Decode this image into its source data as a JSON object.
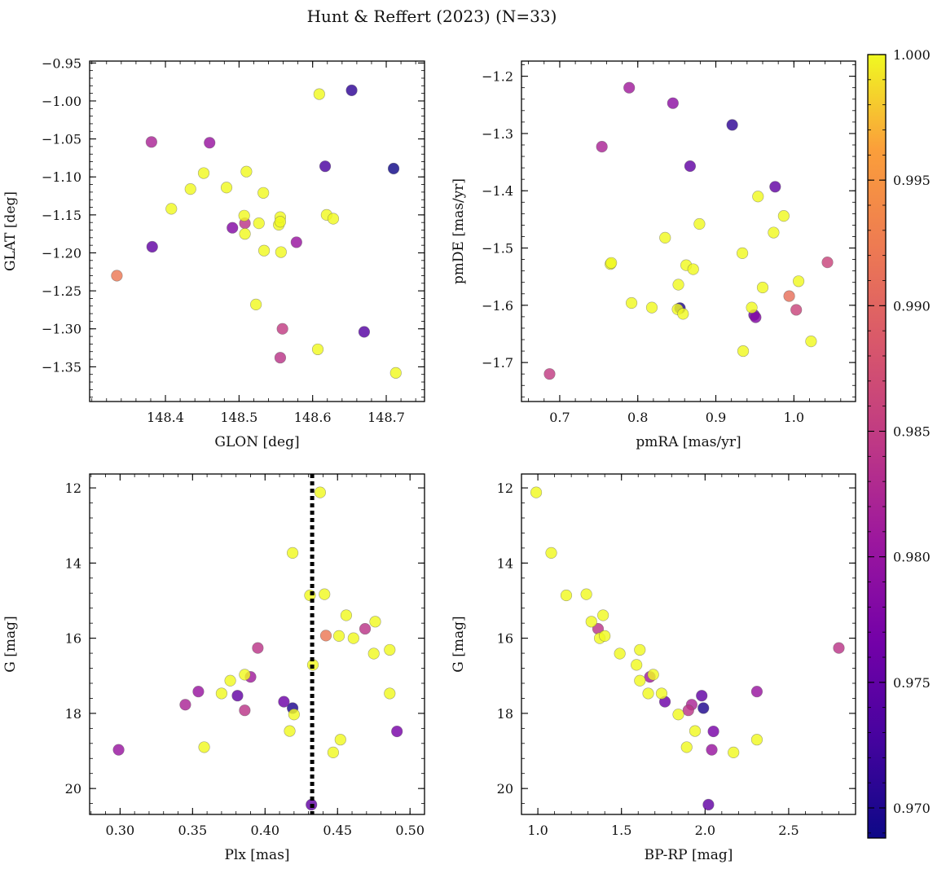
{
  "title": "Hunt & Reffert (2023) (N=33)",
  "colorbar": {
    "colormap": "plasma",
    "min": 0.9688,
    "max": 1.0,
    "ticks": [
      0.97,
      0.975,
      0.98,
      0.985,
      0.99,
      0.995,
      1.0
    ],
    "tick_labels": [
      "0.970",
      "0.975",
      "0.980",
      "0.985",
      "0.990",
      "0.995",
      "1.000"
    ]
  },
  "chart_data": [
    {
      "type": "scatter",
      "id": "glon-glat",
      "xlabel": "GLON [deg]",
      "ylabel": "GLAT [deg]",
      "xlim": [
        148.297,
        148.752
      ],
      "ylim": [
        -1.3957,
        -0.9475
      ],
      "y_inverted": false,
      "xticks": [
        148.4,
        148.5,
        148.6,
        148.7
      ],
      "xtick_labels": [
        "148.4",
        "148.5",
        "148.6",
        "148.7"
      ],
      "yticks": [
        -0.95,
        -1.0,
        -1.05,
        -1.1,
        -1.15,
        -1.2,
        -1.25,
        -1.3,
        -1.35
      ],
      "ytick_labels": [
        "−0.95",
        "−1.00",
        "−1.05",
        "−1.10",
        "−1.15",
        "−1.20",
        "−1.25",
        "−1.30",
        "−1.35"
      ],
      "points": [
        {
          "x": 148.334,
          "y": -1.23,
          "c": 0.992
        },
        {
          "x": 148.381,
          "y": -1.054,
          "c": 0.982
        },
        {
          "x": 148.382,
          "y": -1.192,
          "c": 0.975
        },
        {
          "x": 148.408,
          "y": -1.142,
          "c": 1.0
        },
        {
          "x": 148.434,
          "y": -1.116,
          "c": 1.0
        },
        {
          "x": 148.452,
          "y": -1.095,
          "c": 1.0
        },
        {
          "x": 148.46,
          "y": -1.055,
          "c": 0.98
        },
        {
          "x": 148.483,
          "y": -1.114,
          "c": 1.0
        },
        {
          "x": 148.491,
          "y": -1.167,
          "c": 0.978
        },
        {
          "x": 148.507,
          "y": -1.151,
          "c": 1.0
        },
        {
          "x": 148.508,
          "y": -1.161,
          "c": 0.984
        },
        {
          "x": 148.508,
          "y": -1.175,
          "c": 1.0
        },
        {
          "x": 148.51,
          "y": -1.093,
          "c": 1.0
        },
        {
          "x": 148.523,
          "y": -1.268,
          "c": 1.0
        },
        {
          "x": 148.527,
          "y": -1.161,
          "c": 1.0
        },
        {
          "x": 148.533,
          "y": -1.121,
          "c": 1.0
        },
        {
          "x": 148.534,
          "y": -1.197,
          "c": 1.0
        },
        {
          "x": 148.554,
          "y": -1.163,
          "c": 1.0
        },
        {
          "x": 148.556,
          "y": -1.153,
          "c": 1.0
        },
        {
          "x": 148.556,
          "y": -1.159,
          "c": 1.0
        },
        {
          "x": 148.557,
          "y": -1.199,
          "c": 1.0
        },
        {
          "x": 148.556,
          "y": -1.338,
          "c": 0.984
        },
        {
          "x": 148.559,
          "y": -1.3,
          "c": 0.985
        },
        {
          "x": 148.578,
          "y": -1.186,
          "c": 0.98
        },
        {
          "x": 148.609,
          "y": -0.991,
          "c": 1.0
        },
        {
          "x": 148.607,
          "y": -1.327,
          "c": 1.0
        },
        {
          "x": 148.617,
          "y": -1.086,
          "c": 0.973
        },
        {
          "x": 148.619,
          "y": -1.15,
          "c": 1.0
        },
        {
          "x": 148.628,
          "y": -1.155,
          "c": 1.0
        },
        {
          "x": 148.653,
          "y": -0.986,
          "c": 0.971
        },
        {
          "x": 148.67,
          "y": -1.304,
          "c": 0.974
        },
        {
          "x": 148.71,
          "y": -1.089,
          "c": 0.969
        },
        {
          "x": 148.713,
          "y": -1.358,
          "c": 1.0
        }
      ]
    },
    {
      "type": "scatter",
      "id": "pmra-pmde",
      "xlabel": "pmRA [mas/yr]",
      "ylabel": "pmDE [mas/yr]",
      "xlim": [
        0.651,
        1.079
      ],
      "ylim": [
        -1.7681,
        -1.1735
      ],
      "y_inverted": false,
      "xticks": [
        0.7,
        0.8,
        0.9,
        1.0
      ],
      "xtick_labels": [
        "0.7",
        "0.8",
        "0.9",
        "1.0"
      ],
      "yticks": [
        -1.2,
        -1.3,
        -1.4,
        -1.5,
        -1.6,
        -1.7
      ],
      "ytick_labels": [
        "−1.2",
        "−1.3",
        "−1.4",
        "−1.5",
        "−1.6",
        "−1.7"
      ],
      "points": [
        {
          "x": 0.687,
          "y": -1.72,
          "c": 0.985
        },
        {
          "x": 0.754,
          "y": -1.323,
          "c": 0.982
        },
        {
          "x": 0.765,
          "y": -1.528,
          "c": 1.0
        },
        {
          "x": 0.766,
          "y": -1.526,
          "c": 1.0
        },
        {
          "x": 0.789,
          "y": -1.22,
          "c": 0.981
        },
        {
          "x": 0.792,
          "y": -1.596,
          "c": 1.0
        },
        {
          "x": 0.818,
          "y": -1.604,
          "c": 1.0
        },
        {
          "x": 0.835,
          "y": -1.482,
          "c": 1.0
        },
        {
          "x": 0.845,
          "y": -1.247,
          "c": 0.979
        },
        {
          "x": 0.852,
          "y": -1.564,
          "c": 1.0
        },
        {
          "x": 0.854,
          "y": -1.605,
          "c": 0.97
        },
        {
          "x": 0.851,
          "y": -1.607,
          "c": 1.0
        },
        {
          "x": 0.858,
          "y": -1.615,
          "c": 1.0
        },
        {
          "x": 0.862,
          "y": -1.53,
          "c": 1.0
        },
        {
          "x": 0.867,
          "y": -1.357,
          "c": 0.975
        },
        {
          "x": 0.871,
          "y": -1.537,
          "c": 1.0
        },
        {
          "x": 0.879,
          "y": -1.458,
          "c": 1.0
        },
        {
          "x": 0.921,
          "y": -1.285,
          "c": 0.971
        },
        {
          "x": 0.934,
          "y": -1.509,
          "c": 1.0
        },
        {
          "x": 0.935,
          "y": -1.68,
          "c": 1.0
        },
        {
          "x": 0.946,
          "y": -1.604,
          "c": 1.0
        },
        {
          "x": 0.949,
          "y": -1.617,
          "c": 0.976
        },
        {
          "x": 0.951,
          "y": -1.621,
          "c": 0.978
        },
        {
          "x": 0.954,
          "y": -1.41,
          "c": 1.0
        },
        {
          "x": 0.96,
          "y": -1.569,
          "c": 1.0
        },
        {
          "x": 0.974,
          "y": -1.473,
          "c": 1.0
        },
        {
          "x": 0.976,
          "y": -1.393,
          "c": 0.975
        },
        {
          "x": 0.987,
          "y": -1.444,
          "c": 1.0
        },
        {
          "x": 0.994,
          "y": -1.584,
          "c": 0.991
        },
        {
          "x": 1.003,
          "y": -1.608,
          "c": 0.986
        },
        {
          "x": 1.006,
          "y": -1.558,
          "c": 1.0
        },
        {
          "x": 1.022,
          "y": -1.663,
          "c": 1.0
        },
        {
          "x": 1.043,
          "y": -1.525,
          "c": 0.986
        }
      ]
    },
    {
      "type": "scatter",
      "id": "plx-g",
      "xlabel": "Plx [mas]",
      "ylabel": "G [mag]",
      "xlim": [
        0.279,
        0.51
      ],
      "ylim": [
        20.69,
        11.63
      ],
      "y_inverted": true,
      "xticks": [
        0.3,
        0.35,
        0.4,
        0.45,
        0.5
      ],
      "xtick_labels": [
        "0.30",
        "0.35",
        "0.40",
        "0.45",
        "0.50"
      ],
      "yticks": [
        12,
        14,
        16,
        18,
        20
      ],
      "ytick_labels": [
        "12",
        "14",
        "16",
        "18",
        "20"
      ],
      "vline": {
        "x": 0.4325,
        "style": "dotted"
      },
      "points": [
        {
          "x": 0.299,
          "y": 18.97,
          "c": 0.98
        },
        {
          "x": 0.345,
          "y": 17.77,
          "c": 0.982
        },
        {
          "x": 0.354,
          "y": 17.42,
          "c": 0.98
        },
        {
          "x": 0.358,
          "y": 18.9,
          "c": 1.0
        },
        {
          "x": 0.37,
          "y": 17.47,
          "c": 1.0
        },
        {
          "x": 0.376,
          "y": 17.13,
          "c": 1.0
        },
        {
          "x": 0.381,
          "y": 17.53,
          "c": 0.975
        },
        {
          "x": 0.386,
          "y": 17.92,
          "c": 0.984
        },
        {
          "x": 0.386,
          "y": 16.97,
          "c": 1.0
        },
        {
          "x": 0.39,
          "y": 17.03,
          "c": 0.981
        },
        {
          "x": 0.395,
          "y": 16.26,
          "c": 0.984
        },
        {
          "x": 0.413,
          "y": 17.69,
          "c": 0.976
        },
        {
          "x": 0.417,
          "y": 18.47,
          "c": 1.0
        },
        {
          "x": 0.419,
          "y": 13.73,
          "c": 1.0
        },
        {
          "x": 0.419,
          "y": 17.86,
          "c": 0.97
        },
        {
          "x": 0.42,
          "y": 18.03,
          "c": 1.0
        },
        {
          "x": 0.431,
          "y": 14.86,
          "c": 1.0
        },
        {
          "x": 0.433,
          "y": 16.71,
          "c": 1.0
        },
        {
          "x": 0.432,
          "y": 20.43,
          "c": 0.975
        },
        {
          "x": 0.438,
          "y": 12.12,
          "c": 1.0
        },
        {
          "x": 0.441,
          "y": 14.83,
          "c": 1.0
        },
        {
          "x": 0.442,
          "y": 15.93,
          "c": 0.992
        },
        {
          "x": 0.447,
          "y": 19.04,
          "c": 1.0
        },
        {
          "x": 0.451,
          "y": 15.94,
          "c": 1.0
        },
        {
          "x": 0.452,
          "y": 18.7,
          "c": 1.0
        },
        {
          "x": 0.456,
          "y": 15.39,
          "c": 1.0
        },
        {
          "x": 0.461,
          "y": 16.0,
          "c": 1.0
        },
        {
          "x": 0.469,
          "y": 15.75,
          "c": 0.984
        },
        {
          "x": 0.475,
          "y": 16.41,
          "c": 1.0
        },
        {
          "x": 0.476,
          "y": 15.56,
          "c": 1.0
        },
        {
          "x": 0.486,
          "y": 16.31,
          "c": 1.0
        },
        {
          "x": 0.486,
          "y": 17.47,
          "c": 1.0
        },
        {
          "x": 0.491,
          "y": 18.48,
          "c": 0.977
        }
      ]
    },
    {
      "type": "scatter",
      "id": "bprp-g",
      "xlabel": "BP-RP [mag]",
      "ylabel": "G [mag]",
      "xlim": [
        0.902,
        2.9
      ],
      "ylim": [
        20.69,
        11.63
      ],
      "y_inverted": true,
      "xticks": [
        1.0,
        1.5,
        2.0,
        2.5
      ],
      "xtick_labels": [
        "1.0",
        "1.5",
        "2.0",
        "2.5"
      ],
      "yticks": [
        12,
        14,
        16,
        18,
        20
      ],
      "ytick_labels": [
        "12",
        "14",
        "16",
        "18",
        "20"
      ],
      "points": [
        {
          "x": 0.99,
          "y": 12.12,
          "c": 1.0
        },
        {
          "x": 1.08,
          "y": 13.73,
          "c": 1.0
        },
        {
          "x": 1.17,
          "y": 14.86,
          "c": 1.0
        },
        {
          "x": 1.29,
          "y": 14.83,
          "c": 1.0
        },
        {
          "x": 1.32,
          "y": 15.56,
          "c": 1.0
        },
        {
          "x": 1.36,
          "y": 15.75,
          "c": 0.984
        },
        {
          "x": 1.37,
          "y": 16.0,
          "c": 1.0
        },
        {
          "x": 1.39,
          "y": 15.39,
          "c": 1.0
        },
        {
          "x": 1.4,
          "y": 15.94,
          "c": 1.0
        },
        {
          "x": 1.49,
          "y": 16.41,
          "c": 1.0
        },
        {
          "x": 1.59,
          "y": 16.71,
          "c": 1.0
        },
        {
          "x": 1.61,
          "y": 16.31,
          "c": 1.0
        },
        {
          "x": 1.61,
          "y": 17.13,
          "c": 1.0
        },
        {
          "x": 1.66,
          "y": 17.47,
          "c": 1.0
        },
        {
          "x": 1.67,
          "y": 17.03,
          "c": 0.981
        },
        {
          "x": 1.69,
          "y": 16.97,
          "c": 1.0
        },
        {
          "x": 1.74,
          "y": 17.47,
          "c": 1.0
        },
        {
          "x": 1.76,
          "y": 17.69,
          "c": 0.976
        },
        {
          "x": 1.84,
          "y": 18.03,
          "c": 1.0
        },
        {
          "x": 1.89,
          "y": 18.9,
          "c": 1.0
        },
        {
          "x": 1.9,
          "y": 17.92,
          "c": 0.984
        },
        {
          "x": 1.92,
          "y": 17.77,
          "c": 0.982
        },
        {
          "x": 1.94,
          "y": 18.47,
          "c": 1.0
        },
        {
          "x": 1.98,
          "y": 17.53,
          "c": 0.975
        },
        {
          "x": 1.99,
          "y": 17.86,
          "c": 0.97
        },
        {
          "x": 2.02,
          "y": 20.43,
          "c": 0.975
        },
        {
          "x": 2.04,
          "y": 18.97,
          "c": 0.98
        },
        {
          "x": 2.05,
          "y": 18.48,
          "c": 0.977
        },
        {
          "x": 2.17,
          "y": 19.04,
          "c": 1.0
        },
        {
          "x": 2.31,
          "y": 17.42,
          "c": 0.98
        },
        {
          "x": 2.31,
          "y": 18.7,
          "c": 1.0
        },
        {
          "x": 2.8,
          "y": 16.26,
          "c": 0.984
        }
      ]
    }
  ]
}
